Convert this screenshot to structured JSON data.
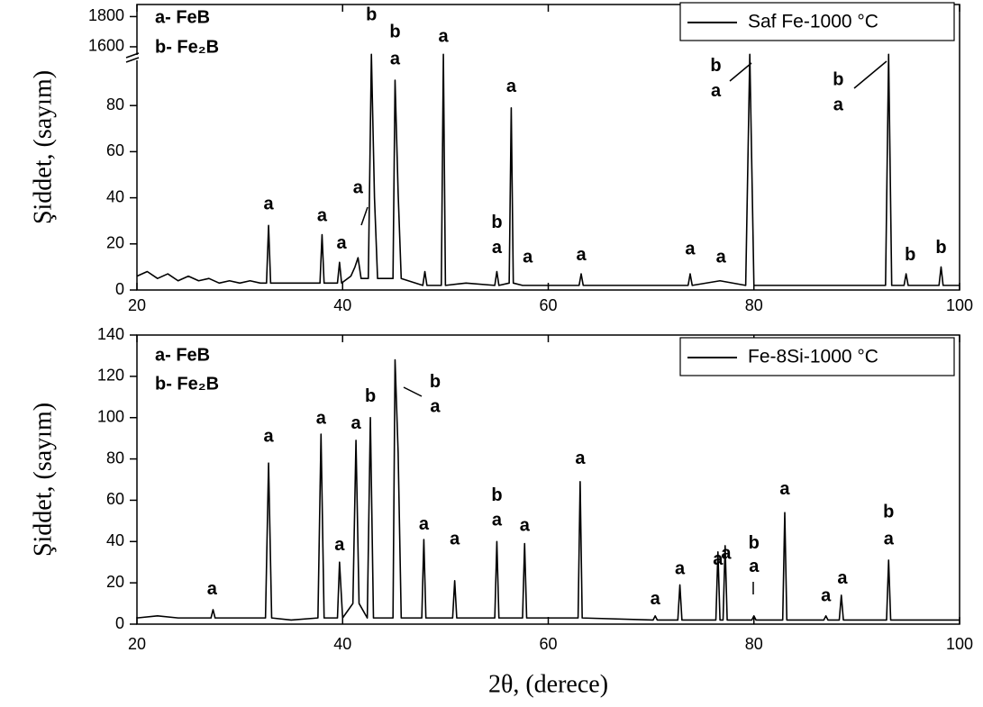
{
  "chart_data": [
    {
      "type": "line",
      "xlim": [
        20,
        100
      ],
      "xticks": [
        20,
        40,
        60,
        80,
        100
      ],
      "ylim": [
        0,
        1880
      ],
      "ybreak": [
        100,
        1540
      ],
      "yticks": [
        0,
        20,
        40,
        60,
        80,
        1600,
        1800
      ],
      "y_label": "Şiddet, (sayım)",
      "legend": "upper right",
      "key": [
        "a- FeB",
        "b- Fe₂B"
      ],
      "x": [
        20,
        21,
        22,
        23,
        24,
        25,
        26,
        27,
        28,
        29,
        30,
        31,
        32,
        32.6,
        32.8,
        33.0,
        35,
        37.8,
        38.0,
        38.2,
        39.5,
        39.7,
        39.9,
        40.8,
        41.2,
        41.5,
        41.8,
        42.5,
        42.8,
        43.1,
        43.4,
        44.9,
        45.1,
        45.4,
        45.7,
        47.8,
        48.0,
        48.2,
        49.6,
        49.8,
        50.0,
        52,
        54.8,
        55.0,
        55.2,
        56.2,
        56.4,
        56.6,
        57.5,
        60,
        63.0,
        63.2,
        63.4,
        68,
        73.6,
        73.8,
        74,
        76.7,
        79.2,
        79.6,
        80.0,
        85,
        90,
        92.8,
        93.1,
        93.4,
        94.6,
        94.8,
        95,
        98.0,
        98.2,
        98.4,
        100
      ],
      "series": [
        {
          "name": "Saf Fe-1000 °C",
          "color": "#000000",
          "values": [
            6,
            8,
            5,
            7,
            4,
            6,
            4,
            5,
            3,
            4,
            3,
            4,
            3,
            3,
            28,
            3,
            3,
            3,
            24,
            3,
            3,
            12,
            3,
            6,
            10,
            14,
            5,
            5,
            1550,
            40,
            5,
            5,
            91,
            42,
            5,
            2,
            8,
            2,
            2,
            1550,
            2,
            3,
            2,
            8,
            2,
            3,
            79,
            3,
            2,
            2,
            2,
            7,
            2,
            2,
            2,
            7,
            2,
            4,
            2,
            1550,
            2,
            2,
            2,
            2,
            1550,
            2,
            2,
            7,
            2,
            2,
            10,
            2,
            2
          ]
        }
      ],
      "annotations": [
        {
          "text": "a",
          "x": 32.8,
          "y": 37
        },
        {
          "text": "a",
          "x": 38.0,
          "y": 32
        },
        {
          "text": "a",
          "x": 39.9,
          "y": 20
        },
        {
          "text": "a",
          "x": 41.5,
          "y": 44
        },
        {
          "text": "b",
          "x": 42.8,
          "y": 1806
        },
        {
          "text": "b",
          "x": 45.1,
          "y": 1694
        },
        {
          "text": "a",
          "x": 45.1,
          "y": 100
        },
        {
          "text": "a",
          "x": 49.8,
          "y": 1665
        },
        {
          "text": "b",
          "x": 55.0,
          "y": 29
        },
        {
          "text": "a",
          "x": 55.0,
          "y": 18
        },
        {
          "text": "a",
          "x": 56.4,
          "y": 88
        },
        {
          "text": "a",
          "x": 58.0,
          "y": 14
        },
        {
          "text": "a",
          "x": 63.2,
          "y": 15
        },
        {
          "text": "a",
          "x": 73.8,
          "y": 17.5
        },
        {
          "text": "a",
          "x": 76.8,
          "y": 14
        },
        {
          "text": "b",
          "x": 76.3,
          "y": 97
        },
        {
          "text": "a",
          "x": 76.3,
          "y": 86
        },
        {
          "text": "b",
          "x": 88.2,
          "y": 91
        },
        {
          "text": "a",
          "x": 88.2,
          "y": 80
        },
        {
          "text": "b",
          "x": 95.2,
          "y": 15
        },
        {
          "text": "b",
          "x": 98.2,
          "y": 18
        }
      ]
    },
    {
      "type": "line",
      "xlim": [
        20,
        100
      ],
      "xticks": [
        20,
        40,
        60,
        80,
        100
      ],
      "ylim": [
        0,
        140
      ],
      "yticks": [
        0,
        20,
        40,
        60,
        80,
        100,
        120,
        140
      ],
      "x_label": "2θ, (derece)",
      "y_label": "Şiddet, (sayım)",
      "legend": "upper right",
      "key": [
        "a- FeB",
        "b- Fe₂B"
      ],
      "x": [
        20,
        22,
        24,
        27.2,
        27.4,
        27.6,
        30,
        32.5,
        32.8,
        33.1,
        35,
        37.6,
        37.9,
        38.2,
        39.5,
        39.7,
        40,
        41,
        41.3,
        41.6,
        42.4,
        42.7,
        43.0,
        44.9,
        45.1,
        45.4,
        45.7,
        47.7,
        47.9,
        48.1,
        50.7,
        50.9,
        51.1,
        54.8,
        55.0,
        55.2,
        57.5,
        57.7,
        57.9,
        62.9,
        63.1,
        63.3,
        70.2,
        70.4,
        70.6,
        72.6,
        72.8,
        73.0,
        76.3,
        76.5,
        76.7,
        77.0,
        77.2,
        77.4,
        79.8,
        80.0,
        80.2,
        82.8,
        83.0,
        83.2,
        86.8,
        87.0,
        87.2,
        88.3,
        88.5,
        88.7,
        92.9,
        93.1,
        93.3,
        100
      ],
      "series": [
        {
          "name": "Fe-8Si-1000 °C",
          "color": "#000000",
          "values": [
            3,
            4,
            3,
            3,
            7,
            3,
            3,
            3,
            78,
            3,
            2,
            3,
            92,
            3,
            3,
            30,
            3,
            10,
            89,
            10,
            3,
            100,
            3,
            3,
            128,
            83,
            3,
            3,
            41,
            3,
            3,
            21,
            3,
            3,
            40,
            3,
            3,
            39,
            3,
            3,
            69,
            3,
            2,
            4,
            2,
            2,
            19,
            2,
            2,
            35,
            2,
            2,
            38,
            2,
            2,
            4,
            2,
            2,
            54,
            2,
            2,
            4,
            2,
            2,
            14,
            2,
            2,
            31,
            2,
            2
          ]
        }
      ],
      "annotations": [
        {
          "text": "a",
          "x": 27.3,
          "y": 16.6
        },
        {
          "text": "a",
          "x": 32.8,
          "y": 90.7
        },
        {
          "text": "a",
          "x": 37.9,
          "y": 99.4
        },
        {
          "text": "a",
          "x": 39.7,
          "y": 38
        },
        {
          "text": "a",
          "x": 41.3,
          "y": 97
        },
        {
          "text": "b",
          "x": 42.7,
          "y": 110
        },
        {
          "text": "b",
          "x": 49.0,
          "y": 117
        },
        {
          "text": "a",
          "x": 49.0,
          "y": 105
        },
        {
          "text": "a",
          "x": 47.9,
          "y": 48
        },
        {
          "text": "a",
          "x": 50.9,
          "y": 41
        },
        {
          "text": "b",
          "x": 55.0,
          "y": 62
        },
        {
          "text": "a",
          "x": 55.0,
          "y": 50
        },
        {
          "text": "a",
          "x": 57.7,
          "y": 47.5
        },
        {
          "text": "a",
          "x": 63.1,
          "y": 80
        },
        {
          "text": "a",
          "x": 70.4,
          "y": 12
        },
        {
          "text": "a",
          "x": 72.8,
          "y": 26.6
        },
        {
          "text": "a",
          "x": 76.5,
          "y": 31
        },
        {
          "text": "a",
          "x": 77.3,
          "y": 34
        },
        {
          "text": "b",
          "x": 80.0,
          "y": 39
        },
        {
          "text": "a",
          "x": 80.0,
          "y": 27.5
        },
        {
          "text": "a",
          "x": 83.0,
          "y": 65
        },
        {
          "text": "a",
          "x": 87.0,
          "y": 13.5
        },
        {
          "text": "a",
          "x": 88.6,
          "y": 22
        },
        {
          "text": "b",
          "x": 93.1,
          "y": 54
        },
        {
          "text": "a",
          "x": 93.1,
          "y": 41
        }
      ]
    }
  ]
}
